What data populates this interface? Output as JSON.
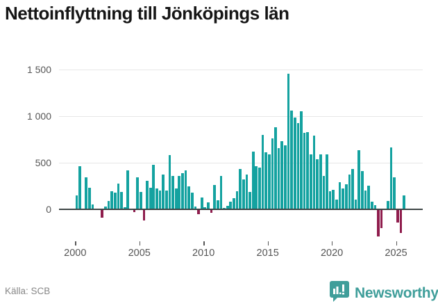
{
  "title": "Nettoinflyttning till Jönköpings län",
  "source": "Källa: SCB",
  "brand": {
    "name": "Newsworthy",
    "icon": "bar-chart-speech-bubble-icon",
    "color": "#3f9e9a"
  },
  "colors": {
    "positive_bar": "#14a2a0",
    "negative_bar": "#8f1d4d",
    "gridline": "#e7e7e7",
    "axis": "#3d4545",
    "tick_text": "#555555",
    "title_text": "#161616",
    "source_text": "#878787"
  },
  "chart_data": {
    "type": "bar",
    "title": "Nettoinflyttning till Jönköpings län",
    "xlabel": "",
    "ylabel": "",
    "frequency": "quarterly",
    "grid": true,
    "legend": "none",
    "ylim": [
      -400,
      1600
    ],
    "yticks": [
      0,
      500,
      1000,
      1500
    ],
    "ytick_labels": [
      "0",
      "500",
      "1 000",
      "1 500"
    ],
    "xticks": [
      2000,
      2005,
      2010,
      2015,
      2020,
      2025
    ],
    "positive_color": "#14a2a0",
    "negative_color": "#8f1d4d",
    "quarters": [
      "2000 Q1",
      "2000 Q2",
      "2000 Q3",
      "2000 Q4",
      "2001 Q1",
      "2001 Q2",
      "2001 Q3",
      "2001 Q4",
      "2002 Q1",
      "2002 Q2",
      "2002 Q3",
      "2002 Q4",
      "2003 Q1",
      "2003 Q2",
      "2003 Q3",
      "2003 Q4",
      "2004 Q1",
      "2004 Q2",
      "2004 Q3",
      "2004 Q4",
      "2005 Q1",
      "2005 Q2",
      "2005 Q3",
      "2005 Q4",
      "2006 Q1",
      "2006 Q2",
      "2006 Q3",
      "2006 Q4",
      "2007 Q1",
      "2007 Q2",
      "2007 Q3",
      "2007 Q4",
      "2008 Q1",
      "2008 Q2",
      "2008 Q3",
      "2008 Q4",
      "2009 Q1",
      "2009 Q2",
      "2009 Q3",
      "2009 Q4",
      "2010 Q1",
      "2010 Q2",
      "2010 Q3",
      "2010 Q4",
      "2011 Q1",
      "2011 Q2",
      "2011 Q3",
      "2011 Q4",
      "2012 Q1",
      "2012 Q2",
      "2012 Q3",
      "2012 Q4",
      "2013 Q1",
      "2013 Q2",
      "2013 Q3",
      "2013 Q4",
      "2014 Q1",
      "2014 Q2",
      "2014 Q3",
      "2014 Q4",
      "2015 Q1",
      "2015 Q2",
      "2015 Q3",
      "2015 Q4",
      "2016 Q1",
      "2016 Q2",
      "2016 Q3",
      "2016 Q4",
      "2017 Q1",
      "2017 Q2",
      "2017 Q3",
      "2017 Q4",
      "2018 Q1",
      "2018 Q2",
      "2018 Q3",
      "2018 Q4",
      "2019 Q1",
      "2019 Q2",
      "2019 Q3",
      "2019 Q4",
      "2020 Q1",
      "2020 Q2",
      "2020 Q3",
      "2020 Q4",
      "2021 Q1",
      "2021 Q2",
      "2021 Q3",
      "2021 Q4",
      "2022 Q1",
      "2022 Q2",
      "2022 Q3",
      "2022 Q4",
      "2023 Q1",
      "2023 Q2",
      "2023 Q3",
      "2023 Q4",
      "2024 Q1",
      "2024 Q2",
      "2024 Q3",
      "2024 Q4",
      "2025 Q1",
      "2025 Q2",
      "2025 Q3"
    ],
    "values": [
      150,
      462,
      0,
      344,
      230,
      55,
      0,
      0,
      -88,
      30,
      90,
      195,
      176,
      280,
      185,
      20,
      420,
      8,
      -33,
      343,
      187,
      -120,
      306,
      228,
      480,
      222,
      202,
      374,
      202,
      581,
      361,
      222,
      361,
      390,
      420,
      248,
      177,
      28,
      -55,
      127,
      20,
      76,
      -38,
      260,
      96,
      361,
      13,
      40,
      83,
      121,
      192,
      430,
      322,
      375,
      190,
      620,
      465,
      445,
      797,
      614,
      594,
      766,
      880,
      660,
      735,
      690,
      1460,
      1065,
      990,
      927,
      1057,
      823,
      833,
      592,
      792,
      541,
      590,
      360,
      590,
      196,
      209,
      108,
      289,
      221,
      272,
      372,
      435,
      108,
      636,
      410,
      201,
      254,
      83,
      45,
      -294,
      -204,
      0,
      88,
      668,
      347,
      -143,
      -256,
      153
    ]
  }
}
